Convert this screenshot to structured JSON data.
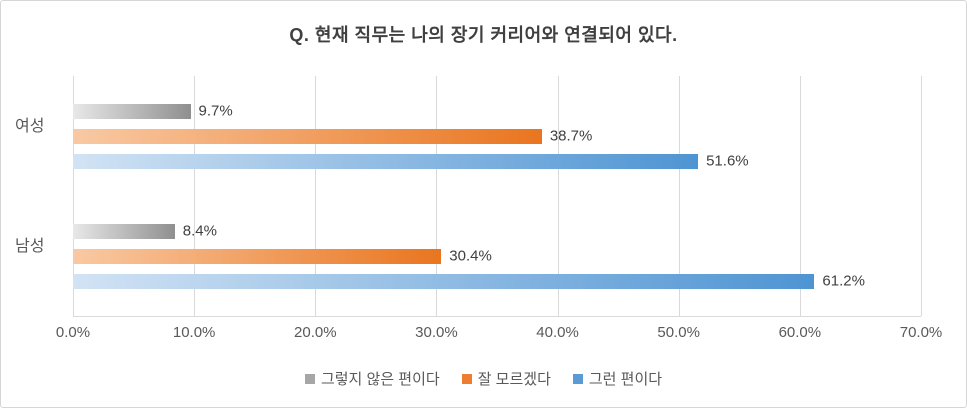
{
  "chart_data": {
    "type": "bar",
    "orientation": "horizontal",
    "title": "Q. 현재 직무는 나의 장기 커리어와 연결되어 있다.",
    "categories": [
      "여성",
      "남성"
    ],
    "series": [
      {
        "name": "그렇지 않은 편이다",
        "color": "#a6a6a6",
        "gradient_from": "#e8e8e8",
        "gradient_to": "#8f8f8f",
        "values": [
          9.7,
          8.4
        ],
        "labels": [
          "9.7%",
          "8.4%"
        ]
      },
      {
        "name": "잘 모르겠다",
        "color": "#ed7d31",
        "gradient_from": "#f9c9a3",
        "gradient_to": "#e9751f",
        "values": [
          38.7,
          30.4
        ],
        "labels": [
          "38.7%",
          "30.4%"
        ]
      },
      {
        "name": "그런 편이다",
        "color": "#5b9bd5",
        "gradient_from": "#d2e3f4",
        "gradient_to": "#4e94d3",
        "values": [
          51.6,
          61.2
        ],
        "labels": [
          "51.6%",
          "61.2%"
        ]
      }
    ],
    "xlim": [
      0,
      70
    ],
    "xticks": [
      "0.0%",
      "10.0%",
      "20.0%",
      "30.0%",
      "40.0%",
      "50.0%",
      "60.0%",
      "70.0%"
    ],
    "grid": true,
    "legend_position": "bottom"
  }
}
